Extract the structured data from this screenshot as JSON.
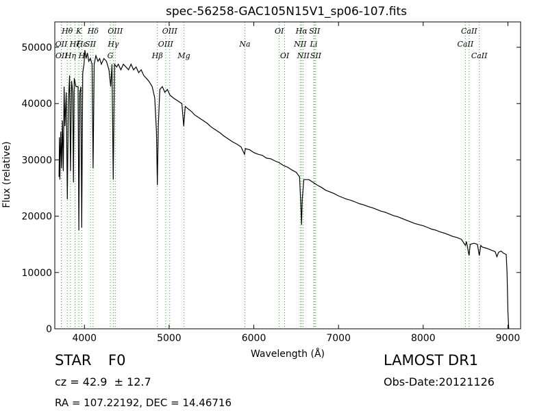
{
  "chart_data": {
    "type": "line",
    "title": "spec-56258-GAC105N15V1_sp06-107.fits",
    "xlabel": "Wavelength (Å)",
    "ylabel": "Flux (relative)",
    "xlim": [
      3650,
      9150
    ],
    "ylim": [
      0,
      54500
    ],
    "x_ticks": [
      4000,
      5000,
      6000,
      7000,
      8000,
      9000
    ],
    "y_ticks": [
      0,
      10000,
      20000,
      30000,
      40000,
      50000
    ],
    "grid": false,
    "line_color": "#000000",
    "marker_color": "#2ca02c",
    "series": [
      {
        "values": [
          [
            3700,
            27000
          ],
          [
            3705,
            34000
          ],
          [
            3710,
            26500
          ],
          [
            3720,
            35000
          ],
          [
            3730,
            28500
          ],
          [
            3740,
            37000
          ],
          [
            3750,
            28000
          ],
          [
            3760,
            43000
          ],
          [
            3770,
            36000
          ],
          [
            3785,
            42000
          ],
          [
            3798,
            23000
          ],
          [
            3810,
            40000
          ],
          [
            3825,
            45000
          ],
          [
            3835,
            28000
          ],
          [
            3848,
            44000
          ],
          [
            3862,
            42000
          ],
          [
            3870,
            26000
          ],
          [
            3880,
            44500
          ],
          [
            3900,
            43000
          ],
          [
            3925,
            43000
          ],
          [
            3934,
            17500
          ],
          [
            3945,
            42000
          ],
          [
            3958,
            43000
          ],
          [
            3968,
            18000
          ],
          [
            3980,
            45500
          ],
          [
            3995,
            47000
          ],
          [
            4005,
            49500
          ],
          [
            4020,
            48000
          ],
          [
            4035,
            49000
          ],
          [
            4050,
            47500
          ],
          [
            4070,
            48000
          ],
          [
            4090,
            47000
          ],
          [
            4102,
            28500
          ],
          [
            4115,
            47000
          ],
          [
            4135,
            48500
          ],
          [
            4160,
            47500
          ],
          [
            4180,
            48000
          ],
          [
            4200,
            47000
          ],
          [
            4230,
            48000
          ],
          [
            4260,
            47500
          ],
          [
            4290,
            46000
          ],
          [
            4310,
            43000
          ],
          [
            4325,
            47000
          ],
          [
            4340,
            26500
          ],
          [
            4355,
            47000
          ],
          [
            4380,
            46500
          ],
          [
            4400,
            47000
          ],
          [
            4430,
            46000
          ],
          [
            4460,
            47000
          ],
          [
            4490,
            46500
          ],
          [
            4520,
            46000
          ],
          [
            4550,
            47000
          ],
          [
            4580,
            46000
          ],
          [
            4610,
            46500
          ],
          [
            4640,
            45500
          ],
          [
            4670,
            46000
          ],
          [
            4700,
            45000
          ],
          [
            4730,
            44500
          ],
          [
            4760,
            44000
          ],
          [
            4800,
            43000
          ],
          [
            4830,
            41000
          ],
          [
            4850,
            35000
          ],
          [
            4861,
            25500
          ],
          [
            4872,
            36000
          ],
          [
            4890,
            42500
          ],
          [
            4920,
            43000
          ],
          [
            4950,
            42000
          ],
          [
            4980,
            42500
          ],
          [
            5010,
            41500
          ],
          [
            5050,
            41000
          ],
          [
            5100,
            40500
          ],
          [
            5150,
            40000
          ],
          [
            5172,
            36000
          ],
          [
            5190,
            39500
          ],
          [
            5230,
            39000
          ],
          [
            5270,
            38500
          ],
          [
            5300,
            38000
          ],
          [
            5350,
            37500
          ],
          [
            5400,
            37000
          ],
          [
            5450,
            36500
          ],
          [
            5500,
            35800
          ],
          [
            5550,
            35300
          ],
          [
            5600,
            34800
          ],
          [
            5650,
            34200
          ],
          [
            5700,
            33700
          ],
          [
            5750,
            33200
          ],
          [
            5800,
            32800
          ],
          [
            5850,
            32300
          ],
          [
            5890,
            31000
          ],
          [
            5900,
            32000
          ],
          [
            5950,
            31800
          ],
          [
            6000,
            31300
          ],
          [
            6050,
            31000
          ],
          [
            6100,
            30800
          ],
          [
            6150,
            30300
          ],
          [
            6200,
            30200
          ],
          [
            6250,
            29800
          ],
          [
            6300,
            29500
          ],
          [
            6350,
            29000
          ],
          [
            6400,
            28700
          ],
          [
            6450,
            28200
          ],
          [
            6500,
            27800
          ],
          [
            6540,
            27000
          ],
          [
            6555,
            22000
          ],
          [
            6563,
            18500
          ],
          [
            6572,
            23000
          ],
          [
            6590,
            26500
          ],
          [
            6650,
            26500
          ],
          [
            6700,
            26000
          ],
          [
            6750,
            25500
          ],
          [
            6800,
            25100
          ],
          [
            6850,
            24600
          ],
          [
            6900,
            24300
          ],
          [
            6950,
            24000
          ],
          [
            7000,
            23600
          ],
          [
            7050,
            23300
          ],
          [
            7100,
            23000
          ],
          [
            7150,
            22800
          ],
          [
            7200,
            22500
          ],
          [
            7250,
            22200
          ],
          [
            7300,
            22000
          ],
          [
            7350,
            21700
          ],
          [
            7400,
            21500
          ],
          [
            7450,
            21200
          ],
          [
            7500,
            20900
          ],
          [
            7550,
            20700
          ],
          [
            7600,
            20400
          ],
          [
            7650,
            20100
          ],
          [
            7700,
            19900
          ],
          [
            7750,
            19600
          ],
          [
            7800,
            19300
          ],
          [
            7850,
            19000
          ],
          [
            7900,
            18700
          ],
          [
            7950,
            18500
          ],
          [
            8000,
            18300
          ],
          [
            8050,
            18000
          ],
          [
            8100,
            17700
          ],
          [
            8150,
            17500
          ],
          [
            8200,
            17200
          ],
          [
            8250,
            17000
          ],
          [
            8300,
            16700
          ],
          [
            8350,
            16400
          ],
          [
            8400,
            16200
          ],
          [
            8450,
            15900
          ],
          [
            8498,
            14800
          ],
          [
            8510,
            15500
          ],
          [
            8542,
            13000
          ],
          [
            8555,
            15000
          ],
          [
            8600,
            15200
          ],
          [
            8640,
            15000
          ],
          [
            8662,
            13000
          ],
          [
            8680,
            14800
          ],
          [
            8700,
            14500
          ],
          [
            8750,
            14300
          ],
          [
            8800,
            14000
          ],
          [
            8850,
            13700
          ],
          [
            8870,
            12800
          ],
          [
            8890,
            13600
          ],
          [
            8920,
            13800
          ],
          [
            8950,
            13400
          ],
          [
            8980,
            13200
          ],
          [
            8990,
            10000
          ],
          [
            9000,
            3000
          ],
          [
            9010,
            0
          ]
        ]
      }
    ],
    "line_markers": [
      {
        "x": 3727,
        "label": "OII",
        "row": 1
      },
      {
        "x": 3729,
        "label": "OII",
        "row": 2
      },
      {
        "x": 3797,
        "label": "Hθ",
        "row": 0
      },
      {
        "x": 3835,
        "label": "Hη",
        "row": 2
      },
      {
        "x": 3889,
        "label": "Hζ",
        "row": 1
      },
      {
        "x": 3934,
        "label": "K",
        "row": 0
      },
      {
        "x": 3969,
        "label": "H",
        "row": 2
      },
      {
        "x": 3970,
        "label": "Hε",
        "row": 1
      },
      {
        "x": 4072,
        "label": "SII",
        "row": 1
      },
      {
        "x": 4102,
        "label": "Hδ",
        "row": 0
      },
      {
        "x": 4305,
        "label": "G",
        "row": 2
      },
      {
        "x": 4341,
        "label": "Hγ",
        "row": 1
      },
      {
        "x": 4364,
        "label": "OIII",
        "row": 0
      },
      {
        "x": 4861,
        "label": "Hβ",
        "row": 2
      },
      {
        "x": 4959,
        "label": "OIII",
        "row": 1
      },
      {
        "x": 5007,
        "label": "OIII",
        "row": 0
      },
      {
        "x": 5175,
        "label": "Mg",
        "row": 2
      },
      {
        "x": 5894,
        "label": "Na",
        "row": 1
      },
      {
        "x": 6300,
        "label": "OI",
        "row": 0
      },
      {
        "x": 6364,
        "label": "OI",
        "row": 2
      },
      {
        "x": 6548,
        "label": "NII",
        "row": 1
      },
      {
        "x": 6563,
        "label": "Hα",
        "row": 0
      },
      {
        "x": 6584,
        "label": "NII",
        "row": 2
      },
      {
        "x": 6707,
        "label": "Li",
        "row": 1
      },
      {
        "x": 6717,
        "label": "SII",
        "row": 0
      },
      {
        "x": 6731,
        "label": "SII",
        "row": 2
      },
      {
        "x": 8498,
        "label": "CaII",
        "row": 1
      },
      {
        "x": 8542,
        "label": "CaII",
        "row": 0
      },
      {
        "x": 8662,
        "label": "CaII",
        "row": 2
      }
    ]
  },
  "info": {
    "class_text": "STAR",
    "subclass_text": "F0",
    "cz_text": "cz = 42.9  ± 12.7",
    "radec_text": "RA = 107.22192, DEC = 14.46716",
    "survey_text": "LAMOST DR1",
    "obs_date_text": "Obs-Date:20121126"
  }
}
